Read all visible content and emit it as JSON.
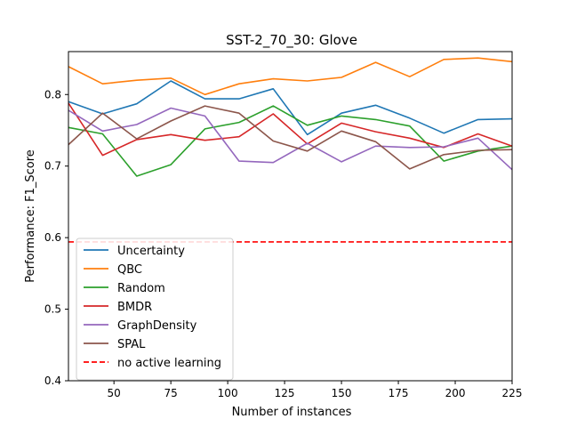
{
  "chart_data": {
    "type": "line",
    "title": "SST-2_70_30: Glove",
    "xlabel": "Number of instances",
    "ylabel": "Performance: F1_Score",
    "xlim": [
      30,
      225
    ],
    "ylim": [
      0.4,
      0.86
    ],
    "xticks": [
      50,
      75,
      100,
      125,
      150,
      175,
      200,
      225
    ],
    "yticks": [
      0.4,
      0.5,
      0.6,
      0.7,
      0.8
    ],
    "x": [
      30,
      45,
      60,
      75,
      90,
      105,
      120,
      135,
      150,
      165,
      180,
      195,
      210,
      225
    ],
    "series": [
      {
        "name": "Uncertainty",
        "color": "#1f77b4",
        "values": [
          0.79,
          0.773,
          0.787,
          0.819,
          0.794,
          0.794,
          0.808,
          0.744,
          0.774,
          0.785,
          0.767,
          0.746,
          0.765,
          0.766
        ]
      },
      {
        "name": "QBC",
        "color": "#ff7f0e",
        "values": [
          0.839,
          0.815,
          0.82,
          0.823,
          0.8,
          0.815,
          0.822,
          0.819,
          0.824,
          0.845,
          0.825,
          0.849,
          0.851,
          0.846
        ]
      },
      {
        "name": "Random",
        "color": "#2ca02c",
        "values": [
          0.754,
          0.745,
          0.686,
          0.702,
          0.752,
          0.761,
          0.784,
          0.757,
          0.77,
          0.765,
          0.756,
          0.707,
          0.721,
          0.728
        ]
      },
      {
        "name": "BMDR",
        "color": "#d62728",
        "values": [
          0.788,
          0.715,
          0.737,
          0.744,
          0.736,
          0.741,
          0.773,
          0.731,
          0.76,
          0.748,
          0.739,
          0.726,
          0.745,
          0.728
        ]
      },
      {
        "name": "GraphDensity",
        "color": "#9467bd",
        "values": [
          0.778,
          0.749,
          0.758,
          0.781,
          0.77,
          0.707,
          0.705,
          0.732,
          0.706,
          0.728,
          0.726,
          0.727,
          0.739,
          0.695
        ]
      },
      {
        "name": "SPAL",
        "color": "#8c564b",
        "values": [
          0.73,
          0.774,
          0.738,
          0.763,
          0.784,
          0.774,
          0.735,
          0.721,
          0.749,
          0.734,
          0.696,
          0.716,
          0.722,
          0.723
        ]
      }
    ],
    "baseline": {
      "name": "no active learning",
      "color": "#ff0000",
      "value": 0.594,
      "style": "dashed"
    },
    "grid": false,
    "legend": "lower-left"
  }
}
